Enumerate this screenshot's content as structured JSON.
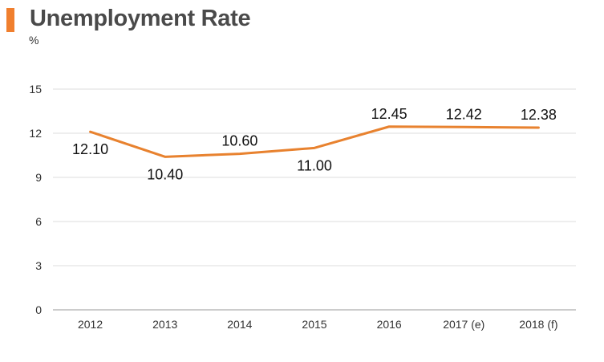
{
  "header": {
    "title": "Unemployment Rate",
    "unit": "%"
  },
  "colors": {
    "accent": "#f07f2e",
    "line": "#e8822f",
    "grid": "#dddddd",
    "axis": "#999999"
  },
  "chart_data": {
    "type": "line",
    "title": "Unemployment Rate",
    "ylabel": "%",
    "xlabel": "",
    "categories": [
      "2012",
      "2013",
      "2014",
      "2015",
      "2016",
      "2017 (e)",
      "2018 (f)"
    ],
    "series": [
      {
        "values": [
          12.1,
          10.4,
          10.6,
          11.0,
          12.45,
          12.42,
          12.38
        ],
        "labels": [
          "12.10",
          "10.40",
          "10.60",
          "11.00",
          "12.45",
          "12.42",
          "12.38"
        ]
      }
    ],
    "yticks": [
      "0",
      "3",
      "6",
      "9",
      "12",
      "15"
    ],
    "ylim": [
      0,
      15
    ],
    "grid": true,
    "legend": "none"
  }
}
